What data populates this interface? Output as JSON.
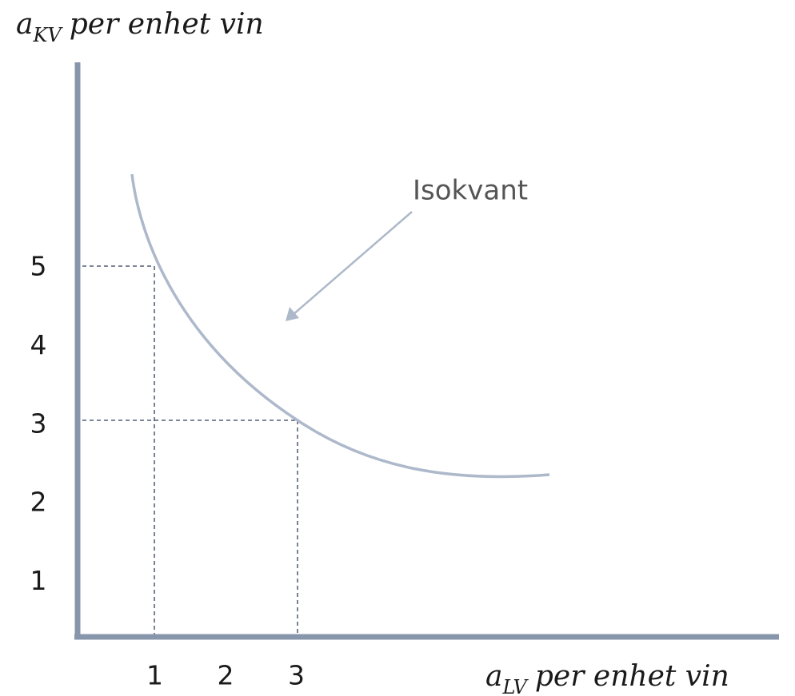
{
  "y_axis": {
    "symbol": "a",
    "subscript": "KV",
    "text": "per enhet vin",
    "ticks": [
      1,
      2,
      3,
      4,
      5
    ]
  },
  "x_axis": {
    "symbol": "a",
    "subscript": "LV",
    "text": "per enhet vin",
    "ticks": [
      1,
      2,
      3
    ]
  },
  "annotation": "Isokvant"
}
